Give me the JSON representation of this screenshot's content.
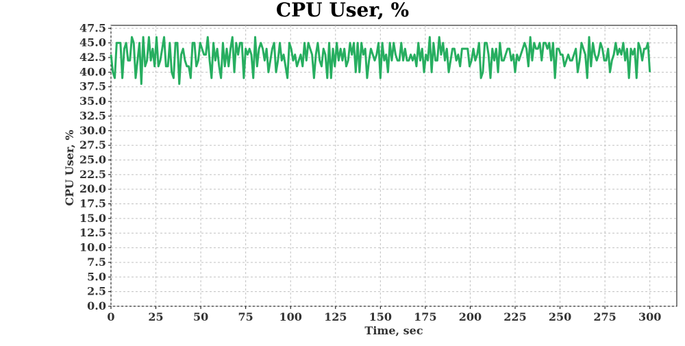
{
  "chart_data": {
    "type": "line",
    "title": "CPU User, %",
    "xlabel": "Time, sec",
    "ylabel": "CPU User, %",
    "xlim": [
      0,
      315
    ],
    "ylim": [
      0,
      48
    ],
    "xticks": [
      0,
      25,
      50,
      75,
      100,
      125,
      150,
      175,
      200,
      225,
      250,
      275,
      300
    ],
    "xtick_labels": [
      "0",
      "25",
      "50",
      "75",
      "100",
      "125",
      "150",
      "175",
      "200",
      "225",
      "250",
      "275",
      "300"
    ],
    "yticks": [
      0,
      2.5,
      5,
      7.5,
      10,
      12.5,
      15,
      17.5,
      20,
      22.5,
      25,
      27.5,
      30,
      32.5,
      35,
      37.5,
      40,
      42.5,
      45,
      47.5
    ],
    "ytick_labels": [
      "0.0",
      "2.5",
      "5.0",
      "7.5",
      "10.0",
      "12.5",
      "15.0",
      "17.5",
      "20.0",
      "22.5",
      "25.0",
      "27.5",
      "30.0",
      "32.5",
      "35.0",
      "37.5",
      "40.0",
      "42.5",
      "45.0",
      "47.5"
    ],
    "grid": true,
    "legend": "none",
    "series": [
      {
        "color": "#27ae60",
        "x_start": 0,
        "x_step": 1,
        "values": [
          43,
          40,
          39,
          45,
          45,
          45,
          39,
          44,
          45,
          42,
          42,
          46,
          45,
          39,
          42,
          45,
          38,
          46,
          41,
          42,
          46,
          42,
          44,
          41,
          46,
          41,
          42,
          44,
          46,
          41,
          41,
          45,
          40,
          39,
          45,
          45,
          38,
          43,
          44,
          42,
          41,
          41,
          39,
          45,
          45,
          41,
          42,
          45,
          44,
          43,
          43,
          46,
          42,
          39,
          45,
          42,
          44,
          41,
          39,
          45,
          41,
          44,
          41,
          44,
          46,
          40,
          45,
          43,
          45,
          45,
          39,
          44,
          43,
          44,
          43,
          39,
          46,
          41,
          44,
          45,
          44,
          42,
          44,
          40,
          42,
          44,
          45,
          40,
          42,
          45,
          42,
          43,
          41,
          39,
          45,
          44,
          42,
          43,
          41,
          42,
          43,
          41,
          45,
          42,
          45,
          44,
          43,
          39,
          43,
          45,
          42,
          41,
          44,
          43,
          39,
          45,
          39,
          44,
          41,
          45,
          42,
          44,
          42,
          44,
          41,
          42,
          45,
          43,
          45,
          40,
          45,
          40,
          45,
          43,
          44,
          39,
          42,
          44,
          43,
          42,
          43,
          45,
          39,
          45,
          42,
          43,
          40,
          45,
          42,
          45,
          43,
          42,
          42,
          45,
          42,
          44,
          42,
          42,
          43,
          42,
          43,
          41,
          45,
          42,
          44,
          40,
          43,
          42,
          46,
          40,
          45,
          42,
          42,
          46,
          43,
          45,
          42,
          44,
          40,
          42,
          44,
          44,
          42,
          43,
          41,
          44,
          44,
          44,
          44,
          41,
          42,
          44,
          42,
          43,
          45,
          39,
          40,
          45,
          45,
          43,
          39,
          44,
          42,
          44,
          40,
          45,
          42,
          42,
          43,
          44,
          44,
          42,
          43,
          40,
          43,
          42,
          43,
          44,
          45,
          44,
          41,
          46,
          42,
          45,
          44,
          44,
          45,
          42,
          45,
          45,
          44,
          45,
          42,
          45,
          39,
          44,
          44,
          43,
          43,
          41,
          42,
          43,
          42,
          42,
          43,
          44,
          40,
          42,
          45,
          44,
          43,
          39,
          46,
          41,
          45,
          43,
          42,
          43,
          45,
          44,
          42,
          42,
          44,
          40,
          42,
          43,
          45,
          43,
          44,
          43,
          45,
          42,
          44,
          39,
          44,
          43,
          44,
          39,
          45,
          44,
          42,
          44,
          44,
          45,
          40
        ],
        "x_end_override": 300
      }
    ]
  }
}
